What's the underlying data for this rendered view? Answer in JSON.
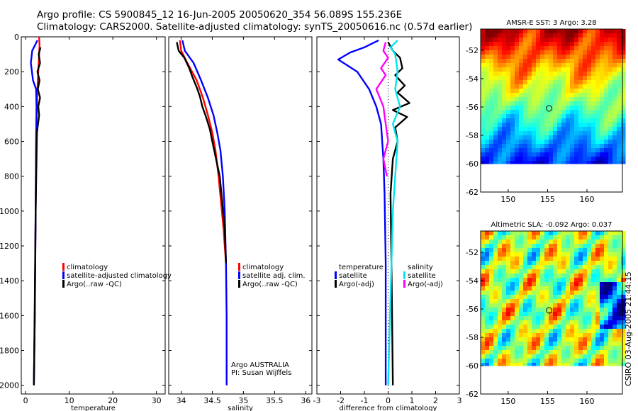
{
  "header": {
    "line1": "Argo profile: CS 5900845_12 16-Jun-2005 20050620_354 56.089S 155.236E",
    "line2": "Climatology: CARS2000. Satellite-adjusted climatology: synTS_20050616.nc (0.57d earlier)"
  },
  "stamp": "CSIRO 03-Aug-2005 21:44:15",
  "colors": {
    "climatology": "#ff0000",
    "satellite": "#0000ff",
    "argo": "#000000",
    "salinity_satellite": "#00e5ee",
    "salinity_argo": "#ff00ff"
  },
  "chart_data": [
    {
      "id": "temperature",
      "type": "line",
      "xlabel": "temperature",
      "xlim": [
        -1,
        32
      ],
      "ylim": [
        2050,
        0
      ],
      "xticks": [
        0,
        10,
        20,
        30
      ],
      "yticks": [
        0,
        200,
        400,
        600,
        800,
        1000,
        1200,
        1400,
        1600,
        1800,
        2000
      ],
      "legend": [
        {
          "label": "climatology",
          "color": "#ff0000"
        },
        {
          "label": "satellite-adjusted climatology",
          "color": "#0000ff"
        },
        {
          "label": "Argo(..raw -QC)",
          "color": "#000000"
        }
      ],
      "series": [
        {
          "name": "climatology",
          "color": "#ff0000",
          "x": [
            3.1,
            3.2,
            3.1,
            2.9,
            2.7,
            2.5,
            2.4,
            2.3,
            2.2,
            2.1,
            1.9
          ],
          "y": [
            0,
            50,
            100,
            200,
            300,
            500,
            700,
            1000,
            1300,
            1600,
            2000
          ]
        },
        {
          "name": "satellite-adjusted climatology",
          "color": "#0000ff",
          "x": [
            2.7,
            1.5,
            1.2,
            1.7,
            2.4,
            2.5,
            2.4,
            2.3,
            2.2,
            2.1,
            1.9
          ],
          "y": [
            20,
            80,
            150,
            250,
            300,
            400,
            600,
            1000,
            1300,
            1600,
            2000
          ]
        },
        {
          "name": "Argo(..raw -QC)",
          "color": "#000000",
          "x": [
            3.4,
            3.0,
            3.3,
            2.7,
            3.2,
            2.8,
            3.3,
            2.9,
            3.1,
            2.6,
            2.5,
            2.3,
            2.1,
            1.9
          ],
          "y": [
            60,
            100,
            150,
            200,
            250,
            300,
            350,
            400,
            450,
            550,
            700,
            1000,
            1500,
            2000
          ]
        }
      ]
    },
    {
      "id": "salinity",
      "type": "line",
      "xlabel": "salinity",
      "xlim": [
        33.8,
        36.1
      ],
      "ylim": [
        2050,
        0
      ],
      "xticks": [
        34,
        34.5,
        35,
        35.5,
        36
      ],
      "yticks": [
        0,
        200,
        400,
        600,
        800,
        1000,
        1200,
        1400,
        1600,
        1800,
        2000
      ],
      "legend": [
        {
          "label": "climatology",
          "color": "#ff0000"
        },
        {
          "label": "satellite adj. clim.",
          "color": "#0000ff"
        },
        {
          "label": "Argo(..raw -QC)",
          "color": "#000000"
        }
      ],
      "annotation": [
        "Argo AUSTRALIA",
        "PI: Susan Wijffels"
      ],
      "series": [
        {
          "name": "climatology",
          "color": "#ff0000",
          "x": [
            33.98,
            34.0,
            34.1,
            34.25,
            34.35,
            34.43,
            34.5,
            34.55,
            34.6,
            34.64,
            34.68,
            34.7,
            34.72
          ],
          "y": [
            20,
            80,
            150,
            250,
            350,
            450,
            550,
            650,
            800,
            950,
            1100,
            1200,
            1300
          ]
        },
        {
          "name": "satellite adj. clim.",
          "color": "#0000ff",
          "x": [
            34.02,
            34.06,
            34.2,
            34.32,
            34.43,
            34.52,
            34.58,
            34.63,
            34.67,
            34.7,
            34.72,
            34.73,
            34.73
          ],
          "y": [
            20,
            80,
            150,
            250,
            350,
            450,
            550,
            650,
            800,
            1000,
            1300,
            1600,
            2000
          ]
        },
        {
          "name": "Argo(..raw -QC)",
          "color": "#000000",
          "x": [
            33.93,
            33.96,
            34.05,
            34.13,
            34.18,
            34.25,
            34.3,
            34.34,
            34.4,
            34.46,
            34.5,
            34.56,
            34.62,
            34.66,
            34.7,
            34.72
          ],
          "y": [
            30,
            80,
            120,
            180,
            230,
            290,
            340,
            400,
            460,
            530,
            600,
            700,
            800,
            950,
            1100,
            1300
          ]
        }
      ]
    },
    {
      "id": "difference",
      "type": "line",
      "xlabel": "difference from climatology",
      "xlim": [
        -3,
        3
      ],
      "ylim": [
        2050,
        0
      ],
      "xticks": [
        -3,
        -2,
        -1,
        0,
        1,
        2,
        3
      ],
      "yticks": [
        0,
        200,
        400,
        600,
        800,
        1000,
        1200,
        1400,
        1600,
        1800,
        2000
      ],
      "legend_left": [
        {
          "label": "temperature",
          "color": "#ffffff"
        },
        {
          "label": "satellite",
          "color": "#0000ff"
        },
        {
          "label": "Argo(-adj)",
          "color": "#000000"
        }
      ],
      "legend_right": [
        {
          "label": "salinity",
          "color": "#ffffff"
        },
        {
          "label": "satellite",
          "color": "#00e5ee"
        },
        {
          "label": "Argo(-adj)",
          "color": "#ff00ff"
        }
      ],
      "series": [
        {
          "name": "temperature satellite",
          "color": "#0000ff",
          "x": [
            -0.4,
            -1.0,
            -1.6,
            -2.1,
            -1.3,
            -0.8,
            -0.5,
            -0.3,
            -0.2,
            -0.15,
            -0.1,
            -0.1
          ],
          "y": [
            20,
            60,
            90,
            130,
            200,
            300,
            400,
            500,
            700,
            900,
            1300,
            2000
          ]
        },
        {
          "name": "temperature Argo(-adj)",
          "color": "#000000",
          "x": [
            0.0,
            0.2,
            0.5,
            0.6,
            0.3,
            0.7,
            0.4,
            0.9,
            0.2,
            0.8,
            0.3,
            0.4,
            0.2,
            0.1,
            0.15,
            0.2
          ],
          "y": [
            30,
            80,
            120,
            180,
            220,
            280,
            320,
            380,
            420,
            460,
            520,
            600,
            700,
            900,
            1400,
            2000
          ]
        },
        {
          "name": "salinity satellite",
          "color": "#00e5ee",
          "x": [
            0.4,
            0.1,
            0.3,
            0.4,
            0.3,
            0.5,
            0.2,
            0.4,
            0.3,
            0.2,
            0.1,
            0.0
          ],
          "y": [
            20,
            60,
            100,
            200,
            300,
            400,
            500,
            600,
            800,
            1000,
            1500,
            2000
          ]
        },
        {
          "name": "salinity Argo(-adj)",
          "color": "#ff00ff",
          "x": [
            -0.1,
            -0.2,
            0.0,
            -0.3,
            -0.1,
            -0.5,
            -0.2,
            -0.1,
            0.0,
            -0.2,
            -0.05
          ],
          "y": [
            30,
            80,
            120,
            180,
            220,
            300,
            400,
            500,
            600,
            700,
            800
          ]
        }
      ]
    },
    {
      "id": "sst_map",
      "type": "heatmap",
      "title": "AMSR-E SST: 3 Argo: 3.28",
      "xlim": [
        146.5,
        164.5
      ],
      "ylim": [
        -62,
        -50.5
      ],
      "xticks": [
        150,
        155,
        160
      ],
      "yticks": [
        -52,
        -54,
        -56,
        -58,
        -60,
        -62
      ],
      "data_ylim": [
        -60,
        -50.5
      ],
      "profile_marker": {
        "lon": 155.2,
        "lat": -56.1
      }
    },
    {
      "id": "sla_map",
      "type": "heatmap",
      "title": "Altimetric SLA: -0.092 Argo: 0.037",
      "xlim": [
        146.5,
        164.5
      ],
      "ylim": [
        -62,
        -50.5
      ],
      "xticks": [
        150,
        155,
        160
      ],
      "yticks": [
        -52,
        -54,
        -56,
        -58,
        -60,
        -62
      ],
      "data_ylim": [
        -60,
        -50.5
      ],
      "profile_marker": {
        "lon": 155.2,
        "lat": -56.1
      }
    }
  ]
}
